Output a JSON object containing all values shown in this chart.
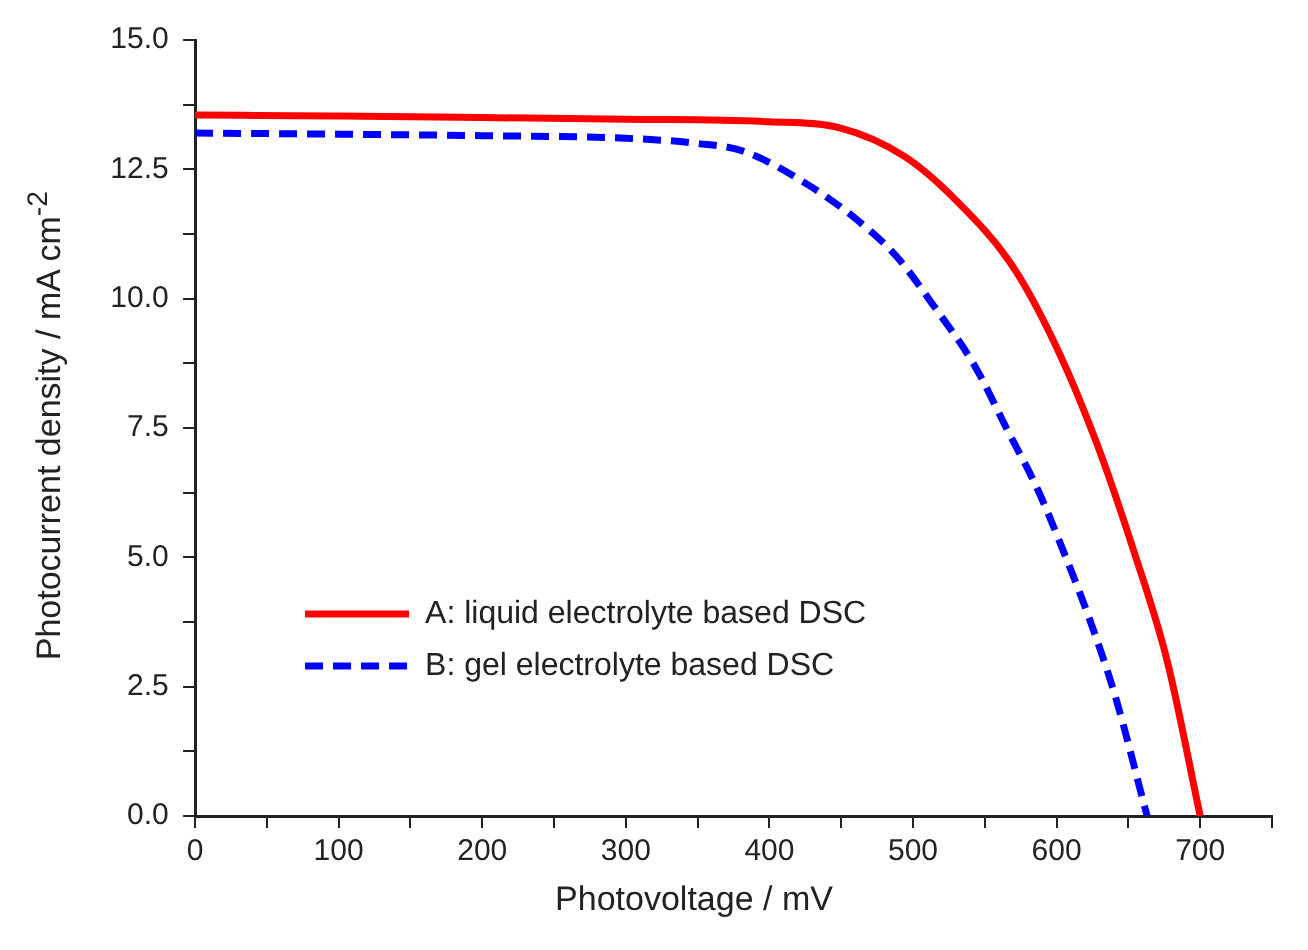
{
  "chart_data": {
    "type": "line",
    "xlabel": "Photovoltage / mV",
    "ylabel": "Photocurrent density / mA cm$^{-2}$",
    "xlim": [
      0,
      750
    ],
    "ylim": [
      0,
      15
    ],
    "xticks": [
      0,
      {
        "value": 50,
        "label": null
      },
      100,
      {
        "value": 150,
        "label": null
      },
      200,
      {
        "value": 250,
        "label": null
      },
      300,
      {
        "value": 350,
        "label": null
      },
      400,
      {
        "value": 450,
        "label": null
      },
      500,
      {
        "value": 550,
        "label": null
      },
      600,
      {
        "value": 650,
        "label": null
      },
      700,
      {
        "value": 750,
        "label": null
      }
    ],
    "yticks": [
      {
        "value": 0,
        "label": "0.0"
      },
      {
        "value": 1.25,
        "label": null
      },
      {
        "value": 2.5,
        "label": "2.5"
      },
      {
        "value": 3.75,
        "label": null
      },
      {
        "value": 5,
        "label": "5.0"
      },
      {
        "value": 6.25,
        "label": null
      },
      {
        "value": 7.5,
        "label": "7.5"
      },
      {
        "value": 8.75,
        "label": null
      },
      {
        "value": 10,
        "label": "10.0"
      },
      {
        "value": 11.25,
        "label": null
      },
      {
        "value": 12.5,
        "label": "12.5"
      },
      {
        "value": 13.75,
        "label": null
      },
      {
        "value": 15,
        "label": "15.0"
      }
    ],
    "grid": false,
    "legend": "bottom left",
    "marker": "none",
    "series": [
      {
        "name": "A: liquid electrolyte based DSC",
        "color": "#ff0000",
        "line_style": "solid",
        "x": [
          0,
          100,
          200,
          300,
          400,
          449,
          494,
          530,
          570,
          601,
          628,
          654,
          677,
          700
        ],
        "values": [
          13.55,
          13.53,
          13.5,
          13.47,
          13.42,
          13.3,
          12.75,
          11.9,
          10.6,
          9.0,
          7.2,
          5.1,
          3.0,
          0
        ]
      },
      {
        "name": "B: gel electrolyte based DSC",
        "color": "#0000ff",
        "line_style": "dashed",
        "x": [
          0,
          100,
          200,
          300,
          350,
          382,
          427,
          462,
          489,
          516,
          543,
          565,
          587,
          605,
          623,
          641,
          663
        ],
        "values": [
          13.2,
          13.18,
          13.15,
          13.1,
          13.0,
          12.85,
          12.2,
          11.5,
          10.8,
          9.8,
          8.7,
          7.5,
          6.3,
          5.1,
          3.8,
          2.3,
          0
        ]
      }
    ]
  }
}
